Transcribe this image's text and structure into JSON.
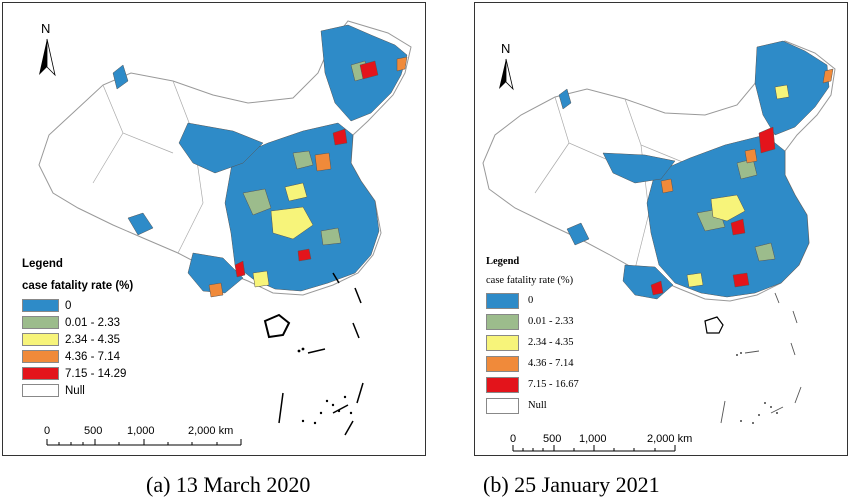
{
  "colors": {
    "zero": "#2e8bc8",
    "c0_01_2_33": "#9cbc8c",
    "c2_34_4_35": "#f7f47a",
    "c4_36_7_14": "#f08a3a",
    "c7_15_max": "#e3141b",
    "null": "#ffffff"
  },
  "panel_a": {
    "caption": "(a) 13 March 2020",
    "north_label": "N",
    "legend_title": "Legend",
    "legend_subtitle": "case fatality rate (%)",
    "legend": [
      "0",
      "0.01 - 2.33",
      "2.34 - 4.35",
      "4.36 - 7.14",
      "7.15 - 14.29",
      "Null"
    ],
    "scale_labels": [
      "0",
      "500",
      "1,000",
      "2,000 km"
    ]
  },
  "panel_b": {
    "caption": "(b) 25 January 2021",
    "north_label": "N",
    "legend_title": "Legend",
    "legend_subtitle": "case fatality rate (%)",
    "legend": [
      "0",
      "0.01 - 2.33",
      "2.34 - 4.35",
      "4.36 - 7.14",
      "7.15 - 16.67",
      "Null"
    ],
    "scale_labels": [
      "0",
      "500",
      "1,000",
      "2,000 km"
    ]
  }
}
